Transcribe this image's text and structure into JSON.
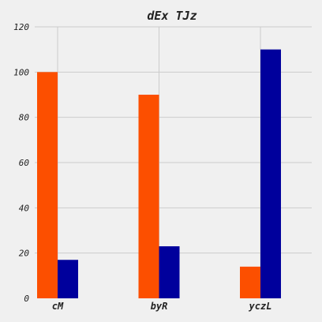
{
  "chart_data": {
    "type": "bar",
    "title": "dEx TJz",
    "xlabel": "",
    "ylabel": "",
    "categories": [
      "cM",
      "byR",
      "yczL"
    ],
    "series": [
      {
        "values": [
          100,
          90,
          14
        ],
        "color": "#fc4f00"
      },
      {
        "values": [
          17,
          23,
          110
        ],
        "color": "#00009c"
      }
    ],
    "ylim": [
      0,
      120
    ],
    "yticks": [
      "0",
      "20",
      "40",
      "60",
      "80",
      "100",
      "120"
    ],
    "grid": true,
    "legend": "none"
  }
}
